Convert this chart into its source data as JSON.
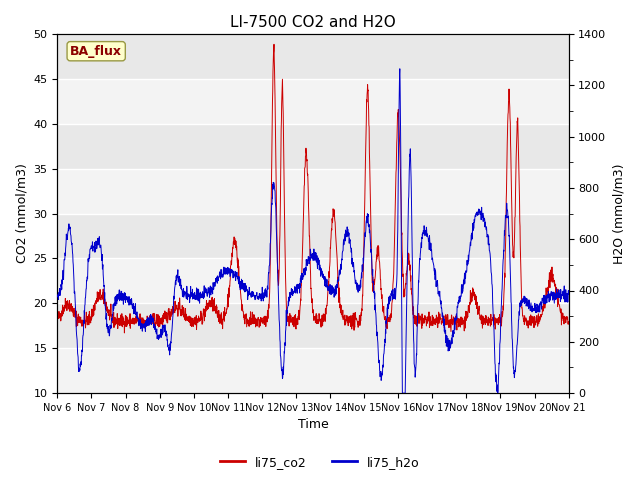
{
  "title": "LI-7500 CO2 and H2O",
  "xlabel": "Time",
  "ylabel_left": "CO2 (mmol/m3)",
  "ylabel_right": "H2O (mmol/m3)",
  "ylim_left": [
    10,
    50
  ],
  "ylim_right": [
    0,
    1400
  ],
  "x_tick_labels": [
    "Nov 6",
    "Nov 7",
    "Nov 8",
    "Nov 9",
    "Nov 10",
    "Nov 11",
    "Nov 12",
    "Nov 13",
    "Nov 14",
    "Nov 15",
    "Nov 16",
    "Nov 17",
    "Nov 18",
    "Nov 19",
    "Nov 20",
    "Nov 21"
  ],
  "legend_labels": [
    "li75_co2",
    "li75_h2o"
  ],
  "legend_colors": [
    "#cc0000",
    "#0000cc"
  ],
  "annotation_text": "BA_flux",
  "annotation_bg": "#ffffcc",
  "annotation_border": "#999944",
  "line_color_co2": "#cc0000",
  "line_color_h2o": "#0000cc",
  "bg_color": "#e8e8e8",
  "stripe_color": "#d0d0d0",
  "title_fontsize": 11,
  "label_fontsize": 9,
  "tick_fontsize": 8
}
